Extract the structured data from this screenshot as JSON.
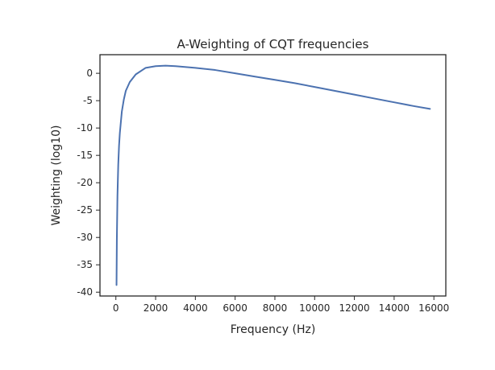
{
  "chart_data": {
    "type": "line",
    "title": "A-Weighting of CQT frequencies",
    "xlabel": "Frequency (Hz)",
    "ylabel": "Weighting (log10)",
    "xlim": [
      -800,
      16600
    ],
    "ylim": [
      -40.7,
      3.4
    ],
    "xticks": [
      0,
      2000,
      4000,
      6000,
      8000,
      10000,
      12000,
      14000,
      16000
    ],
    "yticks": [
      0,
      -5,
      -10,
      -15,
      -20,
      -25,
      -30,
      -35,
      -40
    ],
    "grid": false,
    "series": [
      {
        "color": "#4c72b0",
        "x": [
          32.7,
          50,
          80,
          120,
          160,
          200,
          300,
          400,
          500,
          700,
          1000,
          1500,
          2000,
          2500,
          3000,
          4000,
          5000,
          6000,
          7000,
          8000,
          9000,
          10000,
          11000,
          12000,
          13000,
          14000,
          15000,
          15804
        ],
        "y": [
          -38.7,
          -30.2,
          -22.4,
          -16.7,
          -13.2,
          -10.9,
          -7.0,
          -4.8,
          -3.2,
          -1.6,
          -0.2,
          1.0,
          1.3,
          1.4,
          1.3,
          1.0,
          0.6,
          0.0,
          -0.6,
          -1.2,
          -1.8,
          -2.5,
          -3.2,
          -3.9,
          -4.6,
          -5.3,
          -6.0,
          -6.5
        ]
      }
    ]
  }
}
